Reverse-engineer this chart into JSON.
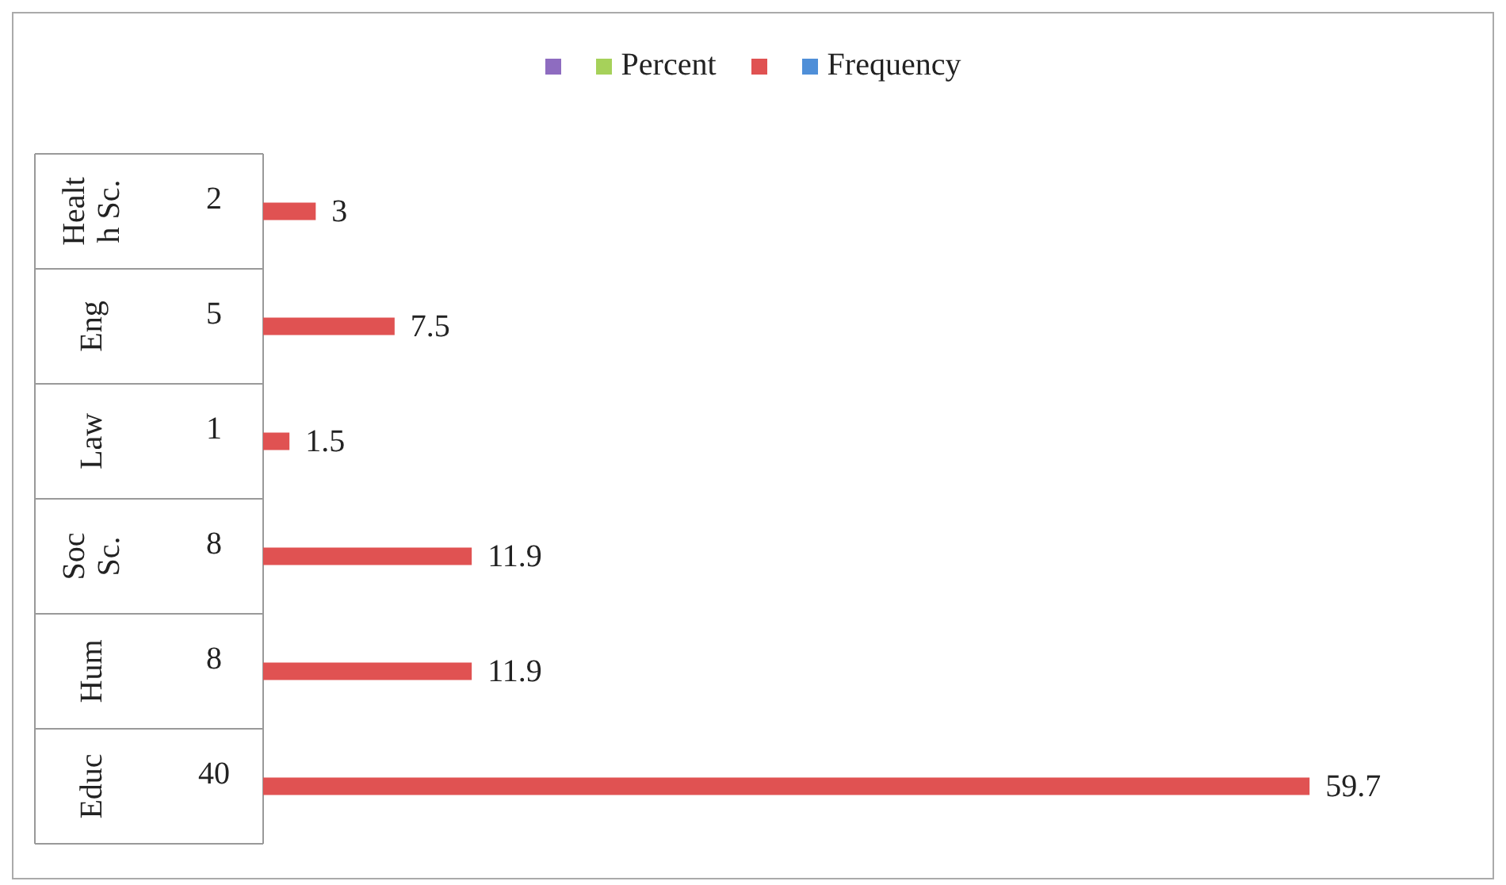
{
  "chart_data": {
    "type": "bar",
    "orientation": "horizontal",
    "categories": [
      "Healt\nh Sc.",
      "Eng",
      "Law",
      "Soc\nSc.",
      "Hum",
      "Educ"
    ],
    "series": [
      {
        "name": null,
        "color": "#8e6cc0",
        "values": [
          null,
          null,
          null,
          null,
          null,
          null
        ]
      },
      {
        "name": "Percent",
        "color": "#a6d15a",
        "values": [
          null,
          null,
          null,
          null,
          null,
          null
        ]
      },
      {
        "name": null,
        "color": "#e05252",
        "values": [
          3,
          7.5,
          1.5,
          11.9,
          11.9,
          59.7
        ]
      },
      {
        "name": "Frequency",
        "color": "#4f8fd8",
        "values": [
          null,
          null,
          null,
          null,
          null,
          null
        ]
      }
    ],
    "annotations": [
      "2",
      "5",
      "1",
      "8",
      "8",
      "40"
    ],
    "data_labels": true,
    "legend": "top"
  }
}
